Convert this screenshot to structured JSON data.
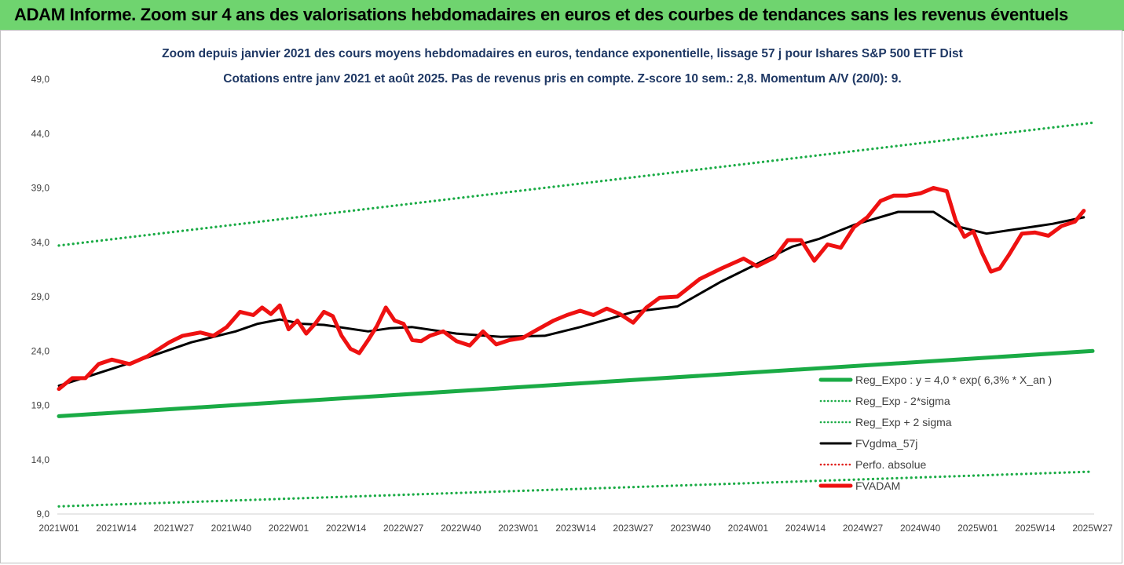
{
  "banner": {
    "title": "ADAM Informe. Zoom sur 4 ans des valorisations hebdomadaires en euros et des courbes de tendances sans les revenus éventuels"
  },
  "chart_data": {
    "type": "line",
    "title": "Zoom depuis janvier 2021 des cours moyens hebdomadaires en euros, tendance exponentielle, lissage 57 j pour Ishares S&P 500 ETF Dist",
    "subtitle": "Cotations entre janv 2021 et août 2025.  Pas de revenus pris en compte. Z-score 10 sem.: 2,8. Momentum A/V (20/0): 9.",
    "xlabel": "",
    "ylabel": "",
    "ylim": [
      9.0,
      49.0
    ],
    "yticks": [
      "9,0",
      "14,0",
      "19,0",
      "24,0",
      "29,0",
      "34,0",
      "39,0",
      "44,0",
      "49,0"
    ],
    "xticks": [
      "2021W01",
      "2021W14",
      "2021W27",
      "2021W40",
      "2022W01",
      "2022W14",
      "2022W27",
      "2022W40",
      "2023W01",
      "2023W14",
      "2023W27",
      "2023W40",
      "2024W01",
      "2024W14",
      "2024W27",
      "2024W40",
      "2025W01",
      "2025W14",
      "2025W27"
    ],
    "grid": false,
    "legend_position": "bottom-right",
    "series": [
      {
        "name": "Reg_Expo : y = 4,0 * exp( 6,3% *  X_an )",
        "color": "#1aab45",
        "style": "solid-thick",
        "x": [
          0,
          234
        ],
        "values": [
          18.0,
          24.0
        ]
      },
      {
        "name": "Reg_Exp - 2*sigma",
        "color": "#1aab45",
        "style": "dotted",
        "x": [
          0,
          234
        ],
        "values": [
          9.7,
          12.9
        ]
      },
      {
        "name": "Reg_Exp + 2 sigma",
        "color": "#1aab45",
        "style": "dotted",
        "x": [
          0,
          234
        ],
        "values": [
          33.7,
          45.0
        ]
      },
      {
        "name": "FVgdma_57j",
        "color": "#000000",
        "style": "solid",
        "x": [
          0,
          10,
          20,
          30,
          40,
          45,
          50,
          55,
          60,
          70,
          75,
          80,
          90,
          100,
          110,
          118,
          125,
          130,
          140,
          150,
          160,
          166,
          172,
          180,
          190,
          198,
          203,
          210,
          215,
          220,
          225,
          232
        ],
        "values": [
          20.8,
          22.1,
          23.4,
          24.8,
          25.8,
          26.5,
          26.9,
          26.5,
          26.4,
          25.8,
          26.1,
          26.2,
          25.6,
          25.3,
          25.4,
          26.2,
          27.0,
          27.6,
          28.1,
          30.4,
          32.4,
          33.6,
          34.3,
          35.6,
          36.8,
          36.8,
          35.5,
          34.8,
          35.1,
          35.4,
          35.7,
          36.3
        ]
      },
      {
        "name": "Perfo. absolue",
        "color": "#e0201c",
        "style": "dotted",
        "x": [],
        "values": []
      },
      {
        "name": "FVADAM",
        "color": "#ee1111",
        "style": "solid-thick",
        "x": [
          0,
          3,
          6,
          9,
          12,
          16,
          20,
          25,
          28,
          32,
          35,
          38,
          41,
          44,
          46,
          48,
          50,
          52,
          54,
          56,
          58,
          60,
          62,
          64,
          66,
          68,
          70,
          72,
          74,
          76,
          78,
          80,
          82,
          84,
          87,
          90,
          93,
          96,
          99,
          102,
          105,
          108,
          112,
          115,
          118,
          121,
          124,
          127,
          130,
          133,
          136,
          140,
          145,
          150,
          155,
          158,
          162,
          165,
          168,
          171,
          174,
          177,
          180,
          183,
          186,
          189,
          192,
          195,
          198,
          201,
          203,
          205,
          207,
          209,
          211,
          213,
          215,
          218,
          221,
          224,
          227,
          230,
          232
        ],
        "values": [
          20.5,
          21.5,
          21.5,
          22.8,
          23.2,
          22.8,
          23.5,
          24.8,
          25.4,
          25.7,
          25.4,
          26.2,
          27.6,
          27.3,
          28.0,
          27.4,
          28.2,
          26.0,
          26.8,
          25.6,
          26.5,
          27.6,
          27.2,
          25.4,
          24.2,
          23.8,
          25.0,
          26.3,
          28.0,
          26.8,
          26.5,
          25.0,
          24.9,
          25.4,
          25.8,
          24.9,
          24.5,
          25.8,
          24.6,
          25.0,
          25.2,
          25.9,
          26.8,
          27.3,
          27.7,
          27.3,
          27.9,
          27.4,
          26.6,
          28.0,
          28.9,
          29.0,
          30.6,
          31.6,
          32.5,
          31.8,
          32.6,
          34.2,
          34.2,
          32.3,
          33.8,
          33.5,
          35.4,
          36.3,
          37.8,
          38.3,
          38.3,
          38.5,
          39.0,
          38.7,
          36.0,
          34.5,
          35.0,
          33.0,
          31.3,
          31.6,
          32.8,
          34.8,
          34.9,
          34.6,
          35.5,
          35.9,
          36.9
        ]
      }
    ]
  }
}
